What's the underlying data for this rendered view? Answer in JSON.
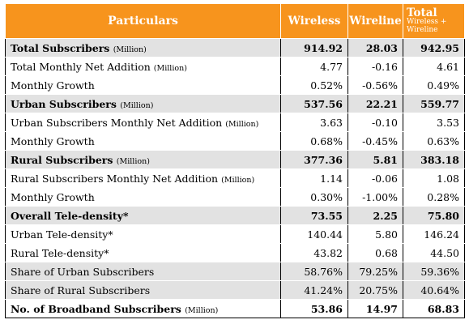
{
  "header": {
    "particulars": "Particulars",
    "wireless": "Wireless",
    "wireline": "Wireline",
    "total": "Total",
    "total_sub": "Wireless + Wireline"
  },
  "rows": [
    {
      "label": "Total Subscribers",
      "unit": "(Million)",
      "wireless": "914.92",
      "wireline": "28.03",
      "total": "942.95"
    },
    {
      "label": "Total Monthly Net Addition",
      "unit": "(Million)",
      "wireless": "4.77",
      "wireline": "-0.16",
      "total": "4.61"
    },
    {
      "label": "Monthly Growth",
      "unit": "",
      "wireless": "0.52%",
      "wireline": "-0.56%",
      "total": "0.49%"
    },
    {
      "label": "Urban Subscribers",
      "unit": "(Million)",
      "wireless": "537.56",
      "wireline": "22.21",
      "total": "559.77"
    },
    {
      "label": "Urban Subscribers Monthly Net Addition",
      "unit": "(Million)",
      "wireless": "3.63",
      "wireline": "-0.10",
      "total": "3.53"
    },
    {
      "label": "Monthly Growth",
      "unit": "",
      "wireless": "0.68%",
      "wireline": "-0.45%",
      "total": "0.63%"
    },
    {
      "label": "Rural Subscribers",
      "unit": "(Million)",
      "wireless": "377.36",
      "wireline": "5.81",
      "total": "383.18"
    },
    {
      "label": "Rural Subscribers Monthly Net Addition",
      "unit": "(Million)",
      "wireless": "1.14",
      "wireline": "-0.06",
      "total": "1.08"
    },
    {
      "label": "Monthly Growth",
      "unit": "",
      "wireless": "0.30%",
      "wireline": "-1.00%",
      "total": "0.28%"
    },
    {
      "label": "Overall Tele-density*",
      "unit": "",
      "wireless": "73.55",
      "wireline": "2.25",
      "total": "75.80"
    },
    {
      "label": "Urban Tele-density*",
      "unit": "",
      "wireless": "140.44",
      "wireline": "5.80",
      "total": "146.24"
    },
    {
      "label": "Rural Tele-density*",
      "unit": "",
      "wireless": "43.82",
      "wireline": "0.68",
      "total": "44.50"
    },
    {
      "label": "Share of Urban Subscribers",
      "unit": "",
      "wireless": "58.76%",
      "wireline": "79.25%",
      "total": "59.36%"
    },
    {
      "label": "Share of Rural Subscribers",
      "unit": "",
      "wireless": "41.24%",
      "wireline": "20.75%",
      "total": "40.64%"
    },
    {
      "label": "No. of Broadband Subscribers",
      "unit": "(Million)",
      "wireless": "53.86",
      "wireline": "14.97",
      "total": "68.83"
    }
  ],
  "colors": {
    "header_bg": "#f7941d",
    "header_text": "#ffffff",
    "shade_row": "#e2e2e2"
  }
}
